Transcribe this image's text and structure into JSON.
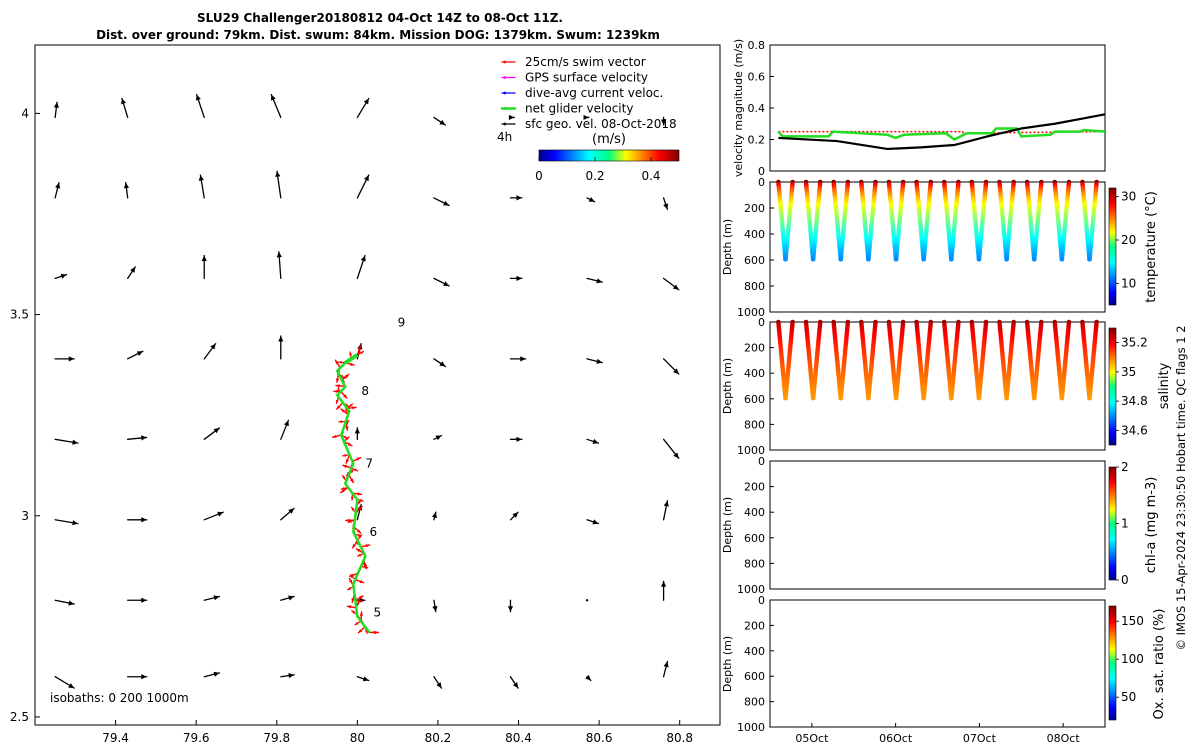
{
  "header": {
    "title_line1": "SLU29 Challenger20180812 04-Oct 14Z to 08-Oct 11Z.",
    "title_line2": "Dist. over ground: 79km. Dist. swum: 84km. Mission DOG: 1379km. Swum: 1239km"
  },
  "credit": "© IMOS 15-Apr-2024 23:30:50 Hobart time. QC flags 1  2",
  "colors": {
    "swim": "#ff0000",
    "gps": "#ff00ff",
    "dive_avg": "#0000ff",
    "net": "#22dd22",
    "geo": "#000000",
    "axis": "#000000"
  },
  "chart_data": [
    {
      "type": "quiver",
      "name": "map",
      "xlim": [
        79.2,
        80.9
      ],
      "ylim": [
        2.48,
        4.17
      ],
      "xticks": [
        79.4,
        79.6,
        79.8,
        80,
        80.2,
        80.4,
        80.6,
        80.8
      ],
      "xtick_labels": [
        "79.4",
        "79.6",
        "79.8",
        "80",
        "80.2",
        "80.4",
        "80.6",
        "80.8"
      ],
      "yticks": [
        2.5,
        3,
        3.5,
        4
      ],
      "ytick_labels": [
        "2.5",
        "3",
        "3.5",
        "4"
      ],
      "legend": [
        {
          "label": "25cm/s swim vector",
          "color": "#ff0000"
        },
        {
          "label": "GPS surface velocity",
          "color": "#ff00ff"
        },
        {
          "label": "dive-avg current veloc.",
          "color": "#0000ff"
        },
        {
          "label": "net glider velocity",
          "color": "#22dd22"
        },
        {
          "label": "sfc geo. vel. 08-Oct-2018",
          "color": "#000000"
        }
      ],
      "legend_time_label": "4h",
      "colorbar": {
        "label": "(m/s)",
        "ticks": [
          "0",
          "0.2",
          "0.4"
        ],
        "range": [
          0,
          0.5
        ]
      },
      "isobaths_label": "isobaths: 0   200  1000m",
      "geo_vectors": {
        "lons": [
          79.25,
          79.43,
          79.62,
          79.81,
          80.0,
          80.19,
          80.38,
          80.57,
          80.76
        ],
        "lats": [
          2.6,
          2.79,
          2.99,
          3.19,
          3.39,
          3.59,
          3.79,
          3.99
        ],
        "u": [
          [
            0.5,
            0.5,
            0.4,
            0.35,
            0.3,
            0.2,
            0.2,
            0.1,
            0.1
          ],
          [
            0.5,
            0.5,
            0.4,
            0.35,
            0.2,
            0.05,
            0.0,
            0.0,
            0.0
          ],
          [
            0.6,
            0.5,
            0.5,
            0.35,
            0.1,
            0.05,
            0.2,
            0.3,
            0.1
          ],
          [
            0.6,
            0.5,
            0.4,
            0.2,
            0.0,
            0.2,
            0.3,
            0.3,
            0.4
          ],
          [
            0.5,
            0.4,
            0.3,
            0.0,
            0.1,
            0.3,
            0.4,
            0.4,
            0.4
          ],
          [
            0.3,
            0.2,
            0.0,
            -0.05,
            0.2,
            0.4,
            0.3,
            0.4,
            0.4
          ],
          [
            0.1,
            -0.05,
            -0.1,
            -0.1,
            0.3,
            0.4,
            0.3,
            0.2,
            0.1
          ],
          [
            0.05,
            -0.15,
            -0.2,
            -0.25,
            0.3,
            0.3,
            0.1,
            0.05,
            0.0
          ]
        ],
        "v": [
          [
            -0.3,
            0.0,
            0.1,
            0.05,
            -0.1,
            -0.3,
            -0.3,
            -0.1,
            0.4
          ],
          [
            -0.1,
            0.0,
            0.1,
            0.1,
            0.0,
            -0.3,
            -0.3,
            0.0,
            0.5
          ],
          [
            -0.1,
            0.0,
            0.2,
            0.3,
            0.4,
            0.2,
            0.2,
            -0.1,
            0.5
          ],
          [
            -0.1,
            0.05,
            0.3,
            0.5,
            0.3,
            0.1,
            0.0,
            -0.1,
            -0.5
          ],
          [
            0.0,
            0.2,
            0.4,
            0.6,
            0.4,
            -0.2,
            0.0,
            -0.1,
            -0.4
          ],
          [
            0.1,
            0.3,
            0.6,
            0.7,
            0.6,
            -0.2,
            0.0,
            -0.1,
            -0.3
          ],
          [
            0.4,
            0.4,
            0.6,
            0.7,
            0.6,
            -0.2,
            0.0,
            -0.1,
            -0.3
          ],
          [
            0.4,
            0.5,
            0.6,
            0.6,
            0.5,
            -0.2,
            0.0,
            0.0,
            -0.2
          ]
        ]
      },
      "glider_track": {
        "lon": [
          80.03,
          80.0,
          79.99,
          80.02,
          79.99,
          80.0,
          79.97,
          79.99,
          79.96,
          79.98,
          79.95,
          79.97,
          79.95,
          79.97,
          80.0
        ],
        "lat": [
          2.71,
          2.75,
          2.83,
          2.9,
          2.96,
          3.04,
          3.08,
          3.13,
          3.2,
          3.26,
          3.3,
          3.32,
          3.36,
          3.38,
          3.4
        ]
      },
      "day_labels": [
        {
          "text": "5",
          "lon": 80.04,
          "lat": 2.75
        },
        {
          "text": "6",
          "lon": 80.03,
          "lat": 2.95
        },
        {
          "text": "7",
          "lon": 80.02,
          "lat": 3.12
        },
        {
          "text": "8",
          "lon": 80.01,
          "lat": 3.3
        },
        {
          "text": "9",
          "lon": 80.1,
          "lat": 3.47
        }
      ]
    },
    {
      "type": "line",
      "name": "velocity",
      "ylabel": "velocity magnitude (m/s)",
      "xlim": [
        4.5,
        8.5
      ],
      "ylim": [
        0,
        0.8
      ],
      "yticks": [
        0,
        0.2,
        0.4,
        0.6,
        0.8
      ],
      "ytick_labels": [
        "0",
        "0.2",
        "0.4",
        "0.6",
        "0.8"
      ],
      "series": [
        {
          "name": "swim",
          "color": "#ff0000",
          "x": [
            4.6,
            6.8,
            6.81,
            8.5
          ],
          "y": [
            0.25,
            0.25,
            0.24,
            0.25
          ]
        },
        {
          "name": "net glider velocity",
          "color": "#22dd22",
          "x": [
            4.6,
            4.65,
            5.2,
            5.25,
            5.9,
            6.0,
            6.1,
            6.6,
            6.7,
            6.85,
            7.15,
            7.2,
            7.45,
            7.5,
            7.85,
            7.9,
            8.2,
            8.25,
            8.5
          ],
          "y": [
            0.25,
            0.22,
            0.22,
            0.25,
            0.23,
            0.21,
            0.23,
            0.24,
            0.2,
            0.24,
            0.24,
            0.27,
            0.27,
            0.22,
            0.23,
            0.25,
            0.25,
            0.26,
            0.25
          ]
        },
        {
          "name": "sfc geo. vel.",
          "color": "#000000",
          "x": [
            4.6,
            5.3,
            5.9,
            6.3,
            6.7,
            7.1,
            7.5,
            7.9,
            8.2,
            8.5
          ],
          "y": [
            0.21,
            0.19,
            0.14,
            0.15,
            0.165,
            0.22,
            0.27,
            0.3,
            0.33,
            0.36
          ]
        }
      ]
    },
    {
      "type": "scatter",
      "name": "temperature",
      "ylabel": "Depth (m)",
      "cbar_label": "temperature (°C)",
      "clim": [
        5,
        32
      ],
      "cbar_ticks": [
        10,
        20,
        30
      ],
      "cbar_tick_labels": [
        "10",
        "20",
        "30"
      ],
      "profile_color_range": [
        12,
        32
      ],
      "ylim": [
        1000,
        0
      ],
      "yticks": [
        0,
        200,
        400,
        600,
        800,
        1000
      ],
      "ytick_labels": [
        "0",
        "200",
        "400",
        "600",
        "800",
        "1000"
      ],
      "max_depth": 600
    },
    {
      "type": "scatter",
      "name": "salinity",
      "ylabel": "Depth (m)",
      "cbar_label": "salinity",
      "clim": [
        34.5,
        35.3
      ],
      "cbar_ticks": [
        34.6,
        34.8,
        35.0,
        35.2
      ],
      "cbar_tick_labels": [
        "34.6",
        "34.8",
        "35",
        "35.2"
      ],
      "profile_color_range": [
        35.08,
        35.28
      ],
      "ylim": [
        1000,
        0
      ],
      "yticks": [
        0,
        200,
        400,
        600,
        800,
        1000
      ],
      "ytick_labels": [
        "0",
        "200",
        "400",
        "600",
        "800",
        "1000"
      ],
      "max_depth": 600
    },
    {
      "type": "scatter",
      "name": "chla",
      "ylabel": "Depth (m)",
      "cbar_label": "chl-a (mg m-3)",
      "clim": [
        0,
        2
      ],
      "cbar_ticks": [
        0,
        1,
        2
      ],
      "cbar_tick_labels": [
        "0",
        "1",
        "2"
      ],
      "ylim": [
        1000,
        0
      ],
      "yticks": [
        0,
        200,
        400,
        600,
        800,
        1000
      ],
      "ytick_labels": [
        "0",
        "200",
        "400",
        "600",
        "800",
        "1000"
      ]
    },
    {
      "type": "scatter",
      "name": "oxygen",
      "ylabel": "Depth (m)",
      "cbar_label": "Ox. sat. ratio (%)",
      "clim": [
        20,
        170
      ],
      "cbar_ticks": [
        50,
        100,
        150
      ],
      "cbar_tick_labels": [
        "50",
        "100",
        "150"
      ],
      "ylim": [
        1000,
        0
      ],
      "yticks": [
        0,
        200,
        400,
        600,
        800,
        1000
      ],
      "ytick_labels": [
        "0",
        "200",
        "400",
        "600",
        "800",
        "1000"
      ],
      "time_ticks": [
        5,
        6,
        7,
        8
      ],
      "time_tick_labels": [
        "05Oct",
        "06Oct",
        "07Oct",
        "08Oct"
      ]
    }
  ]
}
